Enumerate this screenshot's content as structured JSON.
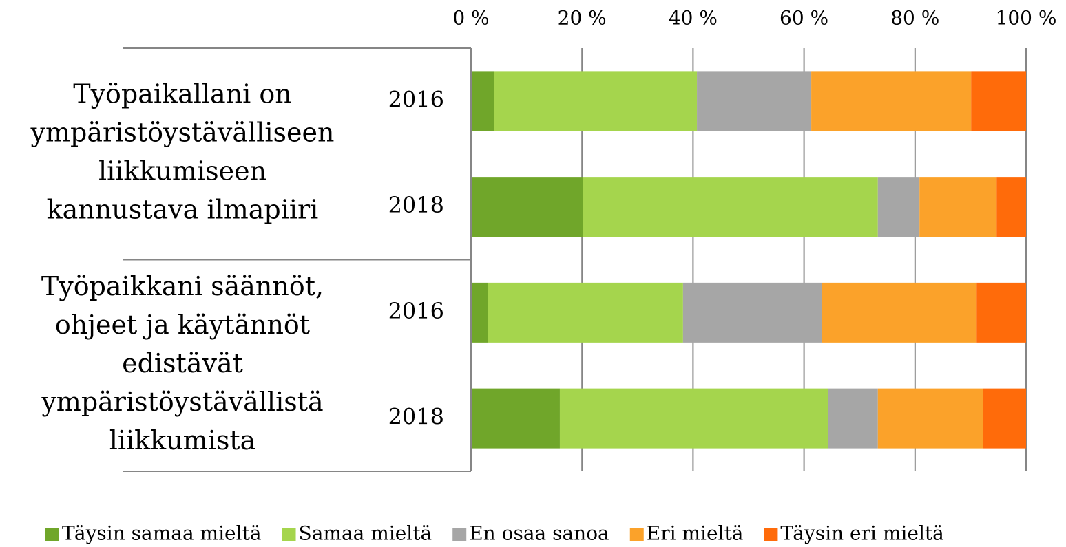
{
  "chart_data": {
    "type": "stacked-barh",
    "categories": [
      "2016",
      "2018",
      "2016",
      "2018"
    ],
    "groups": [
      {
        "lines": [
          "Työpaikallani on",
          "ympäristöystävälliseen",
          "liikkumiseen",
          "kannustava ilmapiiri"
        ]
      },
      {
        "lines": [
          "Työpaikkani säännöt,",
          "ohjeet ja käytännöt",
          "edistävät",
          "ympäristöystävällistä",
          "liikkumista"
        ]
      }
    ],
    "series": [
      {
        "name": "Täysin samaa mieltä",
        "color": "#70a62a",
        "values": [
          4.1,
          20.1,
          3.1,
          16.0
        ]
      },
      {
        "name": "Samaa mieltä",
        "color": "#a5d54d",
        "values": [
          36.6,
          53.2,
          35.1,
          48.3
        ]
      },
      {
        "name": "En osaa sanoa",
        "color": "#a6a6a6",
        "values": [
          20.6,
          7.5,
          25.0,
          9.0
        ]
      },
      {
        "name": "Eri mieltä",
        "color": "#fba22a",
        "values": [
          28.8,
          13.9,
          27.9,
          19.0
        ]
      },
      {
        "name": "Täysin eri mieltä",
        "color": "#ff6b0a",
        "values": [
          9.9,
          5.3,
          8.9,
          7.7
        ]
      }
    ],
    "xlim": [
      0,
      100
    ],
    "xticks": [
      {
        "value": 0,
        "label": "0 %"
      },
      {
        "value": 20,
        "label": "20 %"
      },
      {
        "value": 40,
        "label": "40 %"
      },
      {
        "value": 60,
        "label": "60 %"
      },
      {
        "value": 80,
        "label": "80 %"
      },
      {
        "value": 100,
        "label": "100 %"
      }
    ],
    "grid": true
  }
}
